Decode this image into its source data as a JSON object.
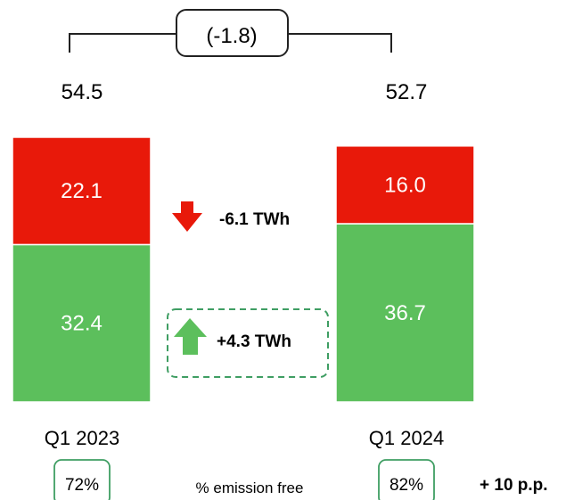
{
  "chart_data": {
    "type": "bar",
    "stacked": true,
    "categories": [
      "Q1 2023",
      "Q1 2024"
    ],
    "totals": [
      "54.5",
      "52.7"
    ],
    "series": [
      {
        "values": [
          32.4,
          36.7
        ],
        "labels": [
          "32.4",
          "36.7"
        ],
        "color": "#5cbf5c"
      },
      {
        "values": [
          22.1,
          16.0
        ],
        "labels": [
          "22.1",
          "16.0"
        ],
        "color": "#e8190a"
      }
    ],
    "total_change": "(-1.8)",
    "red_change": {
      "text": "-6.1 TWh",
      "direction": "down",
      "color": "#e8190a"
    },
    "green_change": {
      "text": "+4.3 TWh",
      "direction": "up",
      "color": "#5cbf5c"
    },
    "emission_free_label": "% emission free",
    "emission_free": [
      "72%",
      "82%"
    ],
    "emission_free_change": "+ 10 p.p."
  }
}
